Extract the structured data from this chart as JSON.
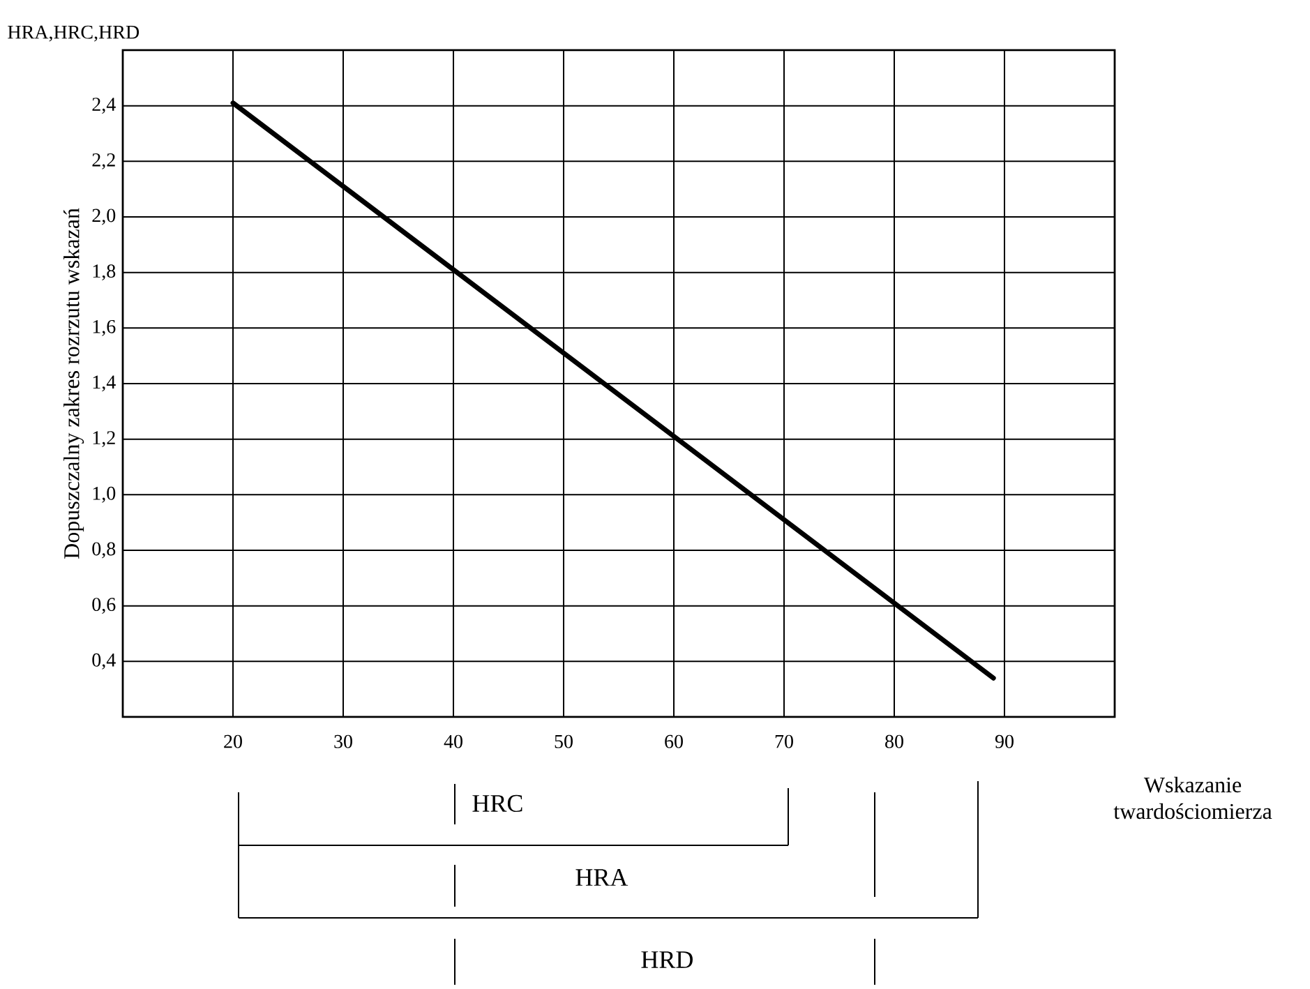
{
  "chart_data": {
    "type": "line",
    "title": "HRA,HRC,HRD",
    "xlabel": "Wskazanie twardościomierza",
    "ylabel": "Dopuszczalny zakres rozrzutu wskazań",
    "x": [
      20,
      89
    ],
    "series": [
      {
        "color": "#000000",
        "values": [
          2.41,
          0.34
        ]
      }
    ],
    "xlim": [
      10,
      100
    ],
    "ylim": [
      0.2,
      2.6
    ],
    "xticks": [
      20,
      30,
      40,
      50,
      60,
      70,
      80,
      90
    ],
    "yticks": [
      {
        "value": 0.4,
        "label": "0,4"
      },
      {
        "value": 0.6,
        "label": "0,6"
      },
      {
        "value": 0.8,
        "label": "0,8"
      },
      {
        "value": 1.0,
        "label": "1,0"
      },
      {
        "value": 1.2,
        "label": "1,2"
      },
      {
        "value": 1.4,
        "label": "1,4"
      },
      {
        "value": 1.6,
        "label": "1,6"
      },
      {
        "value": 1.8,
        "label": "1,8"
      },
      {
        "value": 2.0,
        "label": "2,0"
      },
      {
        "value": 2.2,
        "label": "2,2"
      },
      {
        "value": 2.4,
        "label": "2,4"
      }
    ],
    "grid": true,
    "line_style": "solid",
    "annotations": [
      "HRC",
      "HRA",
      "HRD"
    ]
  }
}
